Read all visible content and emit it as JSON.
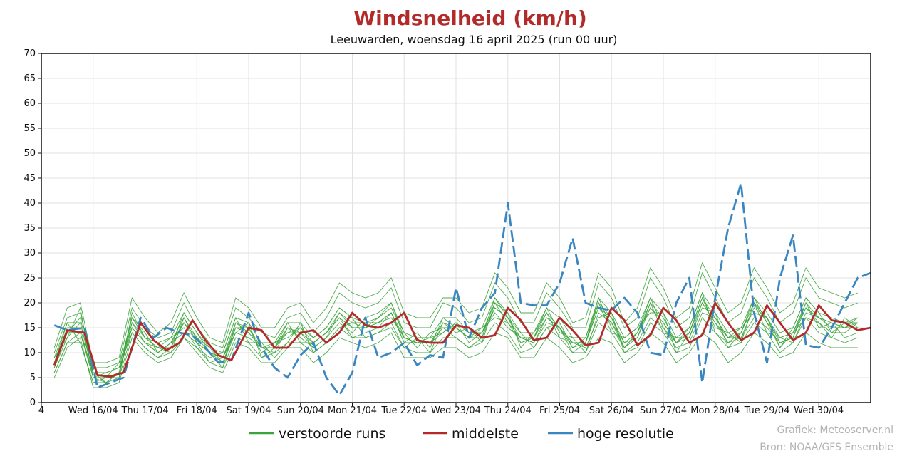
{
  "chart_data": {
    "type": "line",
    "title": "Windsnelheid (km/h)",
    "subtitle": "Leeuwarden, woensdag 16 april 2025 (run 00 uur)",
    "ylim": [
      0,
      70
    ],
    "yticks": [
      0,
      5,
      10,
      15,
      20,
      25,
      30,
      35,
      40,
      45,
      50,
      55,
      60,
      65,
      70
    ],
    "xlim": [
      0,
      96
    ],
    "x_tick_labels": [
      {
        "x": 0,
        "label": "4"
      },
      {
        "x": 6,
        "label": "Wed 16/04"
      },
      {
        "x": 12,
        "label": "Thu 17/04"
      },
      {
        "x": 18,
        "label": "Fri 18/04"
      },
      {
        "x": 24,
        "label": "Sat 19/04"
      },
      {
        "x": 30,
        "label": "Sun 20/04"
      },
      {
        "x": 36,
        "label": "Mon 21/04"
      },
      {
        "x": 42,
        "label": "Tue 22/04"
      },
      {
        "x": 48,
        "label": "Wed 23/04"
      },
      {
        "x": 54,
        "label": "Thu 24/04"
      },
      {
        "x": 60,
        "label": "Fri 25/04"
      },
      {
        "x": 66,
        "label": "Sat 26/04"
      },
      {
        "x": 72,
        "label": "Sun 27/04"
      },
      {
        "x": 78,
        "label": "Mon 28/04"
      },
      {
        "x": 84,
        "label": "Tue 29/04"
      },
      {
        "x": 90,
        "label": "Wed 30/04"
      }
    ],
    "grid": true,
    "legend_position": "bottom-center",
    "legend": [
      {
        "label": "verstoorde runs",
        "color": "#3aa33a"
      },
      {
        "label": "middelste",
        "color": "#b22a2a"
      },
      {
        "label": "hoge resolutie",
        "color": "#3a86c0"
      }
    ],
    "median": {
      "name": "middelste",
      "color": "#b22a2a",
      "x": [
        1.5,
        3,
        5,
        6.5,
        8,
        9.5,
        11.5,
        13,
        14.5,
        16,
        17.5,
        19,
        20.5,
        22,
        24,
        25.5,
        27,
        28.5,
        30,
        31.5,
        33,
        34.5,
        36,
        37.5,
        39,
        40.5,
        42,
        43.5,
        45,
        46.5,
        48,
        49.5,
        51,
        52.5,
        54,
        55.5,
        57,
        58.5,
        60,
        61.5,
        63,
        64.5,
        66,
        67.5,
        69,
        70.5,
        72,
        73.5,
        75,
        76.5,
        78,
        79.5,
        81,
        82.5,
        84,
        85.5,
        87,
        88.5,
        90,
        91.5,
        93,
        94.5,
        96
      ],
      "y": [
        7.5,
        14.5,
        14,
        5.5,
        5.2,
        6,
        16,
        12.5,
        10.5,
        12,
        16.5,
        12.5,
        9.5,
        8.5,
        15,
        14.5,
        11,
        11,
        14,
        14.5,
        12,
        14,
        18,
        15.5,
        15,
        16,
        18,
        12.5,
        12,
        12,
        15.5,
        15,
        13,
        13.5,
        19,
        16.5,
        12.5,
        13,
        17,
        14.5,
        11.5,
        12,
        19,
        16.5,
        11.5,
        13.5,
        19,
        16.5,
        12,
        13.5,
        20,
        16,
        12.5,
        14,
        19.5,
        16,
        12.5,
        14,
        19.5,
        16.5,
        16,
        14.5,
        15
      ]
    },
    "high_resolution": {
      "name": "hoge resolutie",
      "color": "#3a86c0",
      "x": [
        1.5,
        3,
        5,
        6.5,
        8,
        9.5,
        11.5,
        13,
        14.5,
        16,
        17.5,
        19,
        20.5,
        22,
        24,
        25.5,
        27,
        28.5,
        30,
        31.5,
        33,
        34.5,
        36,
        37.5,
        39,
        40.5,
        42,
        43.5,
        45,
        46.5,
        48,
        49.5,
        51,
        52.5,
        54,
        55.5,
        57,
        58.5,
        60,
        61.5,
        63,
        64.5,
        66,
        67.5,
        69,
        70.5,
        72,
        73.5,
        75,
        76.5,
        78,
        79.5,
        81,
        82.5,
        84,
        85.5,
        87,
        88.5,
        90,
        91.5,
        93,
        94.5,
        96
      ],
      "y": [
        15.5,
        14.5,
        15,
        3,
        4,
        5,
        17,
        13,
        15,
        14,
        13.5,
        11,
        8,
        8.5,
        18,
        11,
        7,
        5,
        9.5,
        12,
        5,
        1.5,
        6,
        17,
        9,
        10,
        12,
        7.5,
        9.5,
        9,
        23,
        13,
        19,
        22,
        40,
        20,
        19.5,
        19.5,
        24,
        33,
        20,
        19,
        18.5,
        21,
        18,
        10,
        9.5,
        20,
        25,
        4,
        21,
        35,
        44,
        18,
        8,
        25,
        33.5,
        11.5,
        11,
        15,
        20,
        25,
        26
      ]
    },
    "ensemble": {
      "name": "verstoorde runs",
      "color": "#3aa33a",
      "x_start": 1.5,
      "x_step": 1.5,
      "members": [
        [
          8,
          14,
          17,
          6,
          4,
          6,
          16,
          12,
          10,
          12,
          14,
          12,
          8,
          9,
          14,
          13,
          11,
          10,
          15,
          13,
          11,
          13,
          16,
          14,
          17,
          18,
          20,
          13,
          12,
          13,
          14,
          16,
          12,
          14,
          18,
          15,
          13,
          12,
          16,
          15,
          10,
          12,
          21,
          15,
          11,
          14,
          21,
          15,
          12,
          15,
          22,
          14,
          12,
          13,
          17,
          15,
          12,
          13,
          20,
          15,
          16,
          13,
          14
        ],
        [
          6,
          12,
          14,
          5,
          6,
          7,
          14,
          11,
          9,
          11,
          18,
          14,
          10,
          7,
          16,
          15,
          10,
          12,
          13,
          15,
          13,
          15,
          19,
          17,
          13,
          14,
          16,
          11,
          13,
          10,
          16,
          14,
          15,
          12,
          20,
          18,
          11,
          14,
          18,
          13,
          12,
          11,
          17,
          18,
          10,
          12,
          17,
          15,
          11,
          12,
          18,
          17,
          13,
          15,
          18,
          17,
          11,
          15,
          21,
          18,
          14,
          16,
          16
        ],
        [
          9,
          16,
          12,
          4,
          5,
          5,
          18,
          13,
          12,
          13,
          15,
          11,
          9,
          10,
          17,
          12,
          12,
          9,
          12,
          16,
          10,
          12,
          15,
          16,
          15,
          17,
          19,
          14,
          11,
          14,
          15,
          13,
          11,
          13,
          21,
          17,
          14,
          11,
          15,
          16,
          11,
          13,
          20,
          14,
          13,
          15,
          18,
          18,
          10,
          14,
          21,
          15,
          14,
          12,
          20,
          14,
          13,
          12,
          18,
          17,
          15,
          15,
          17
        ],
        [
          7,
          13,
          16,
          6,
          5,
          8,
          15,
          12,
          11,
          10,
          17,
          13,
          11,
          8,
          14,
          16,
          9,
          11,
          16,
          12,
          12,
          14,
          17,
          13,
          14,
          15,
          18,
          12,
          14,
          11,
          17,
          15,
          13,
          15,
          17,
          16,
          12,
          13,
          19,
          14,
          13,
          10,
          18,
          16,
          12,
          13,
          20,
          14,
          13,
          13,
          19,
          18,
          11,
          14,
          21,
          16,
          11,
          14,
          17,
          16,
          13,
          17,
          15
        ],
        [
          8,
          15,
          15,
          5,
          4,
          6,
          17,
          14,
          10,
          12,
          16,
          12,
          10,
          9,
          15,
          14,
          11,
          12,
          14,
          14,
          11,
          13,
          18,
          16,
          16,
          16,
          17,
          13,
          12,
          12,
          14,
          16,
          14,
          14,
          19,
          17,
          13,
          12,
          17,
          15,
          11,
          12,
          19,
          17,
          11,
          14,
          19,
          16,
          12,
          14,
          20,
          16,
          13,
          13,
          19,
          17,
          12,
          13,
          19,
          16,
          14,
          14,
          16
        ],
        [
          5,
          11,
          13,
          3,
          3,
          4,
          13,
          10,
          8,
          9,
          13,
          10,
          7,
          6,
          12,
          11,
          8,
          8,
          11,
          11,
          8,
          10,
          13,
          12,
          11,
          12,
          14,
          9,
          9,
          9,
          11,
          11,
          9,
          10,
          14,
          13,
          9,
          9,
          13,
          11,
          8,
          9,
          13,
          12,
          8,
          10,
          14,
          12,
          8,
          10,
          14,
          12,
          8,
          10,
          14,
          12,
          9,
          10,
          14,
          12,
          11,
          11,
          11
        ],
        [
          11,
          19,
          20,
          8,
          8,
          9,
          21,
          17,
          14,
          16,
          22,
          17,
          13,
          12,
          21,
          19,
          15,
          15,
          19,
          20,
          16,
          19,
          24,
          22,
          21,
          22,
          25,
          18,
          17,
          17,
          21,
          21,
          18,
          19,
          26,
          23,
          18,
          18,
          24,
          21,
          16,
          17,
          26,
          23,
          16,
          19,
          27,
          23,
          17,
          19,
          28,
          23,
          18,
          20,
          27,
          23,
          18,
          20,
          27,
          23,
          22,
          21,
          22
        ],
        [
          7,
          14,
          14,
          6,
          5,
          6,
          16,
          13,
          11,
          11,
          16,
          13,
          10,
          8,
          15,
          15,
          11,
          11,
          14,
          15,
          12,
          14,
          18,
          15,
          15,
          16,
          18,
          12,
          12,
          12,
          15,
          15,
          13,
          13,
          19,
          17,
          12,
          13,
          17,
          15,
          12,
          12,
          19,
          16,
          11,
          13,
          19,
          16,
          12,
          13,
          20,
          16,
          12,
          14,
          20,
          16,
          13,
          14,
          19,
          17,
          16,
          15,
          15
        ],
        [
          10,
          17,
          18,
          7,
          7,
          8,
          19,
          15,
          13,
          14,
          20,
          15,
          12,
          11,
          19,
          17,
          14,
          13,
          17,
          18,
          14,
          17,
          22,
          20,
          19,
          20,
          23,
          16,
          15,
          15,
          20,
          19,
          16,
          17,
          24,
          21,
          16,
          16,
          22,
          19,
          15,
          15,
          24,
          21,
          15,
          17,
          25,
          21,
          15,
          17,
          26,
          21,
          16,
          18,
          25,
          21,
          16,
          18,
          25,
          21,
          20,
          19,
          20
        ],
        [
          6,
          12,
          12,
          4,
          4,
          5,
          14,
          11,
          9,
          10,
          13,
          11,
          8,
          7,
          13,
          12,
          9,
          10,
          12,
          12,
          10,
          12,
          15,
          13,
          13,
          14,
          15,
          11,
          10,
          10,
          13,
          13,
          11,
          12,
          16,
          14,
          10,
          11,
          15,
          13,
          10,
          10,
          16,
          14,
          10,
          11,
          16,
          14,
          10,
          11,
          17,
          14,
          11,
          12,
          16,
          14,
          10,
          12,
          17,
          14,
          13,
          12,
          13
        ],
        [
          8,
          16,
          16,
          6,
          6,
          7,
          17,
          13,
          11,
          13,
          18,
          14,
          11,
          10,
          17,
          16,
          12,
          12,
          16,
          16,
          13,
          15,
          19,
          17,
          16,
          17,
          20,
          14,
          13,
          13,
          17,
          17,
          14,
          15,
          21,
          18,
          14,
          14,
          19,
          17,
          13,
          13,
          21,
          18,
          13,
          15,
          21,
          18,
          13,
          15,
          22,
          18,
          14,
          15,
          21,
          18,
          14,
          15,
          21,
          18,
          17,
          16,
          17
        ],
        [
          9,
          13,
          19,
          5,
          5,
          6,
          15,
          12,
          10,
          12,
          17,
          12,
          10,
          9,
          16,
          14,
          11,
          11,
          15,
          14,
          12,
          14,
          17,
          15,
          15,
          16,
          18,
          13,
          12,
          12,
          16,
          15,
          13,
          14,
          20,
          16,
          13,
          13,
          18,
          15,
          12,
          12,
          20,
          17,
          12,
          14,
          20,
          17,
          12,
          14,
          21,
          17,
          13,
          14,
          20,
          17,
          13,
          14,
          20,
          17,
          16,
          15,
          16
        ]
      ]
    }
  },
  "legend": {
    "perturbed": "verstoorde runs",
    "median": "middelste",
    "high_res": "hoge resolutie"
  },
  "credits": {
    "line1": "Grafiek: Meteoserver.nl",
    "line2": "Bron: NOAA/GFS Ensemble"
  }
}
